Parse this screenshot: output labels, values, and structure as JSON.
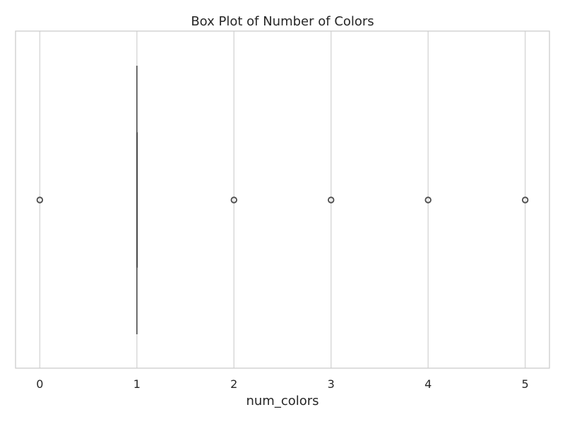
{
  "chart_data": {
    "type": "box",
    "title": "Box Plot of Number of Colors",
    "xlabel": "num_colors",
    "ylabel": "",
    "orientation": "horizontal",
    "xlim": [
      -0.25,
      5.25
    ],
    "x_ticks": [
      0,
      1,
      2,
      3,
      4,
      5
    ],
    "x_tick_labels": [
      "0",
      "1",
      "2",
      "3",
      "4",
      "5"
    ],
    "grid": "x",
    "legend": "none",
    "box": {
      "min_whisker": 1,
      "q1": 1,
      "median": 1,
      "q3": 1,
      "max_whisker": 1
    },
    "outliers": [
      0,
      2,
      3,
      4,
      5
    ],
    "colors": {
      "box_line": "#4d4d4d",
      "grid": "#d9d9d9",
      "frame": "#cccccc",
      "text": "#262626"
    }
  }
}
